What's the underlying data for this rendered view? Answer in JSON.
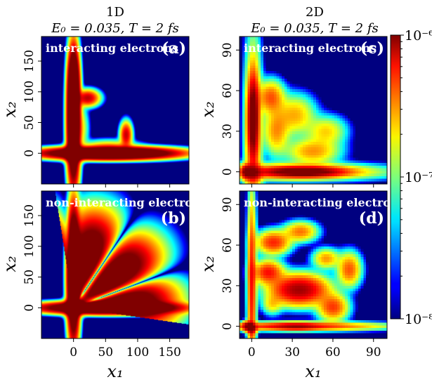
{
  "chart_data": {
    "type": "heatmap",
    "colormap": "jet",
    "colorbar": {
      "scale": "log",
      "range": [
        1e-08,
        1e-06
      ],
      "tick_labels": [
        "10⁻⁶",
        "10⁻⁷",
        "10⁻⁸"
      ],
      "tick_values": [
        1e-06,
        1e-07,
        1e-08
      ]
    },
    "columns": [
      {
        "title": "1D",
        "subtitle": "E₀ = 0.035,  T = 2 fs",
        "xlim": [
          -50,
          180
        ],
        "ylim": [
          -50,
          190
        ],
        "x_ticks": [
          0,
          50,
          100,
          150
        ],
        "x_tick_labels": [
          "0",
          "50",
          "100",
          "150"
        ],
        "y_ticks": [
          0,
          50,
          100,
          150
        ],
        "y_tick_labels": [
          "0",
          "50",
          "100",
          "150"
        ]
      },
      {
        "title": "2D",
        "subtitle": "E₀ = 0.035,  T = 2 fs",
        "xlim": [
          -9,
          100
        ],
        "ylim": [
          -9,
          100
        ],
        "x_ticks": [
          0,
          30,
          60,
          90
        ],
        "x_tick_labels": [
          "0",
          "30",
          "60",
          "90"
        ],
        "y_ticks": [
          0,
          30,
          60,
          90
        ],
        "y_tick_labels": [
          "0",
          "30",
          "60",
          "90"
        ]
      }
    ],
    "rows": [
      {
        "label": "interacting electrons"
      },
      {
        "label": "non-interacting electrons"
      }
    ],
    "panels": [
      {
        "id": "a",
        "tag": "(a)",
        "row": 0,
        "col": 0
      },
      {
        "id": "b",
        "tag": "(b)",
        "row": 1,
        "col": 0
      },
      {
        "id": "c",
        "tag": "(c)",
        "row": 0,
        "col": 1
      },
      {
        "id": "d",
        "tag": "(d)",
        "row": 1,
        "col": 1
      }
    ],
    "xlabel": "x₁",
    "ylabel": "x₂"
  }
}
